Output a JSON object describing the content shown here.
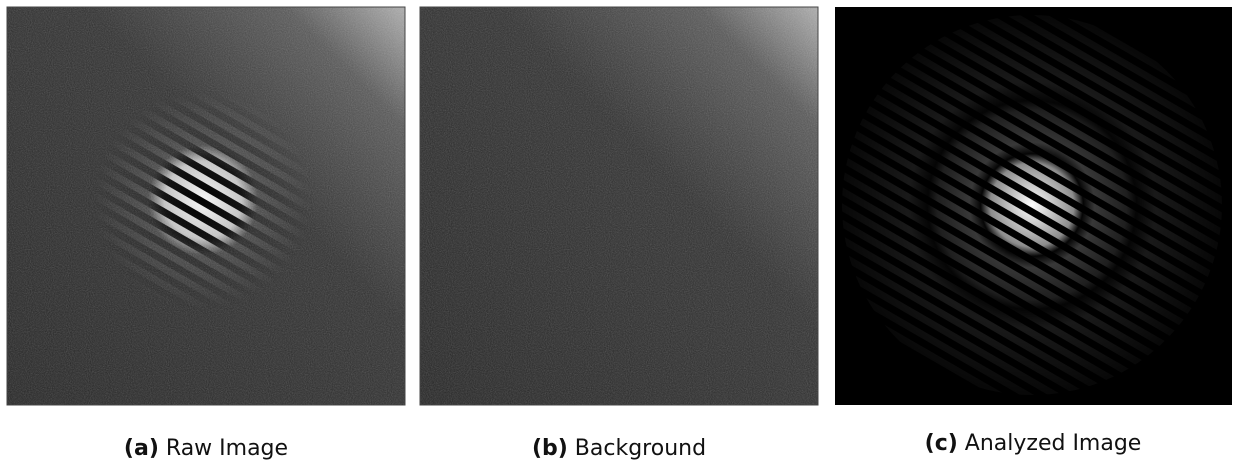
{
  "panels": [
    {
      "label": "(a)",
      "caption": "Raw Image"
    },
    {
      "label": "(b)",
      "caption": "Background"
    },
    {
      "label": "(c)",
      "caption": "Analyzed Image"
    }
  ]
}
